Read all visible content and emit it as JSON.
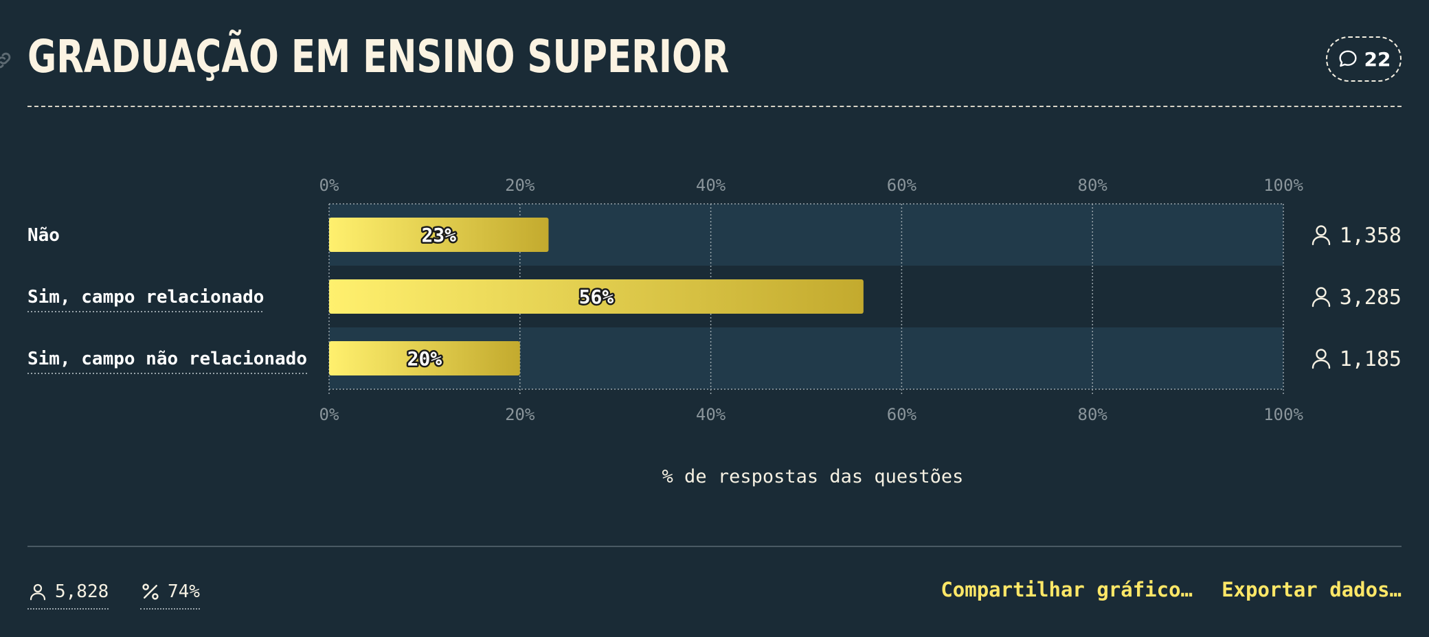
{
  "header": {
    "title": "GRADUAÇÃO EM ENSINO SUPERIOR",
    "comment_count": "22"
  },
  "chart_data": {
    "type": "bar",
    "orientation": "horizontal",
    "categories": [
      "Não",
      "Sim, campo relacionado",
      "Sim, campo não relacionado"
    ],
    "values": [
      23,
      56,
      20
    ],
    "value_labels": [
      "23%",
      "56%",
      "20%"
    ],
    "respondents": [
      "1,358",
      "3,285",
      "1,185"
    ],
    "xlim": [
      0,
      100
    ],
    "xticks": [
      "0%",
      "20%",
      "40%",
      "60%",
      "80%",
      "100%"
    ],
    "xlabel": "% de respostas das questões",
    "grid": true,
    "axis_top_and_bottom": true,
    "colors": {
      "bar_start": "#fff06e",
      "bar_end": "#c3aa2e",
      "row_band": "#213a4a",
      "background": "#1a2b36"
    }
  },
  "footer": {
    "total_respondents": "5,828",
    "response_rate": "74%",
    "share_label": "Compartilhar gráfico…",
    "export_label": "Exportar dados…"
  },
  "icons": {
    "title_link": "link-icon",
    "comments": "speech-bubble-icon",
    "respondents": "person-icon",
    "rate": "percent-icon"
  }
}
